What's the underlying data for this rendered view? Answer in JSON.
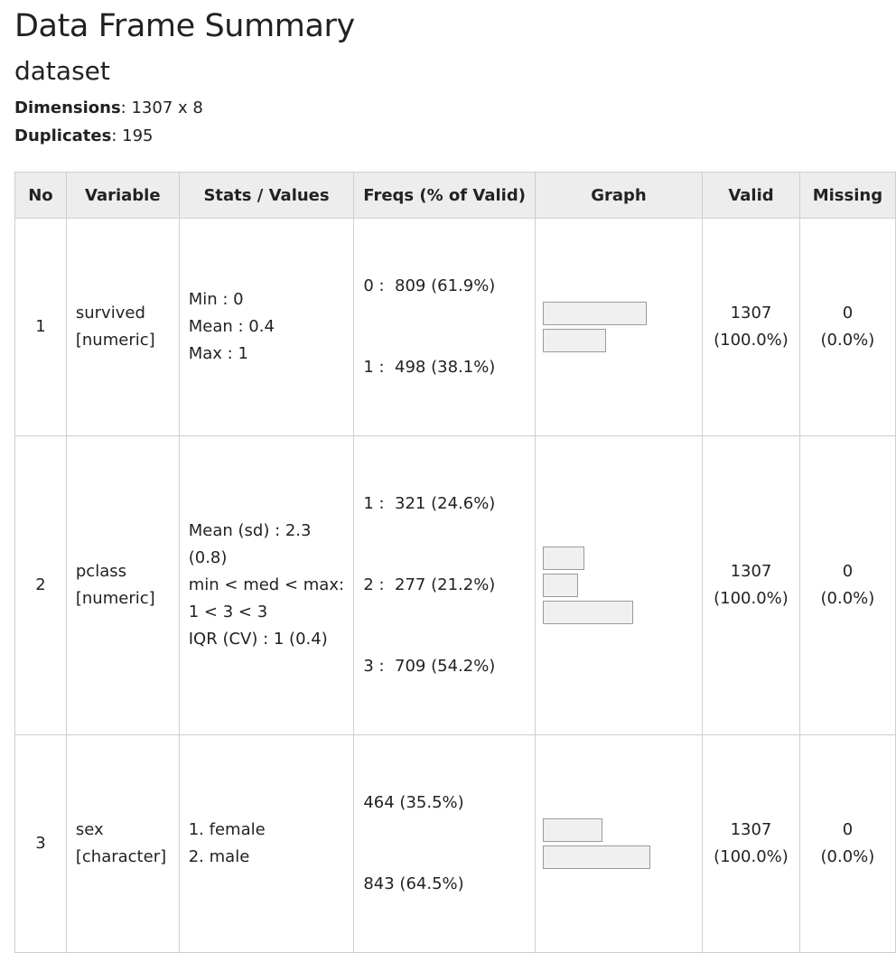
{
  "title": "Data Frame Summary",
  "subtitle": "dataset",
  "dimensions": {
    "label": "Dimensions",
    "value": ": 1307 x 8"
  },
  "duplicates": {
    "label": "Duplicates",
    "value": ": 195"
  },
  "columns": [
    "No",
    "Variable",
    "Stats / Values",
    "Freqs (% of Valid)",
    "Graph",
    "Valid",
    "Missing"
  ],
  "rows": [
    {
      "no": "1",
      "var_name": "survived",
      "var_type": "[numeric]",
      "stats": [
        "Min : 0",
        "Mean : 0.4",
        "Max : 1"
      ],
      "freqs": [
        "0 :  809 (61.9%)",
        "1 :  498 (38.1%)"
      ],
      "bars": [
        0.619,
        0.381
      ],
      "valid": "1307",
      "valid_pct": "(100.0%)",
      "missing": "0",
      "missing_pct": "(0.0%)"
    },
    {
      "no": "2",
      "var_name": "pclass",
      "var_type": "[numeric]",
      "stats": [
        "Mean (sd) : 2.3 (0.8)",
        "min < med < max:",
        "1 < 3 < 3",
        "IQR (CV) : 1 (0.4)"
      ],
      "freqs": [
        "1 :  321 (24.6%)",
        "2 :  277 (21.2%)",
        "3 :  709 (54.2%)"
      ],
      "bars": [
        0.246,
        0.212,
        0.542
      ],
      "valid": "1307",
      "valid_pct": "(100.0%)",
      "missing": "0",
      "missing_pct": "(0.0%)"
    },
    {
      "no": "3",
      "var_name": "sex",
      "var_type": "[character]",
      "stats": [
        "1. female",
        "2. male"
      ],
      "freqs": [
        "464 (35.5%)",
        "843 (64.5%)"
      ],
      "bars": [
        0.355,
        0.645
      ],
      "valid": "1307",
      "valid_pct": "(100.0%)",
      "missing": "0",
      "missing_pct": "(0.0%)"
    }
  ]
}
